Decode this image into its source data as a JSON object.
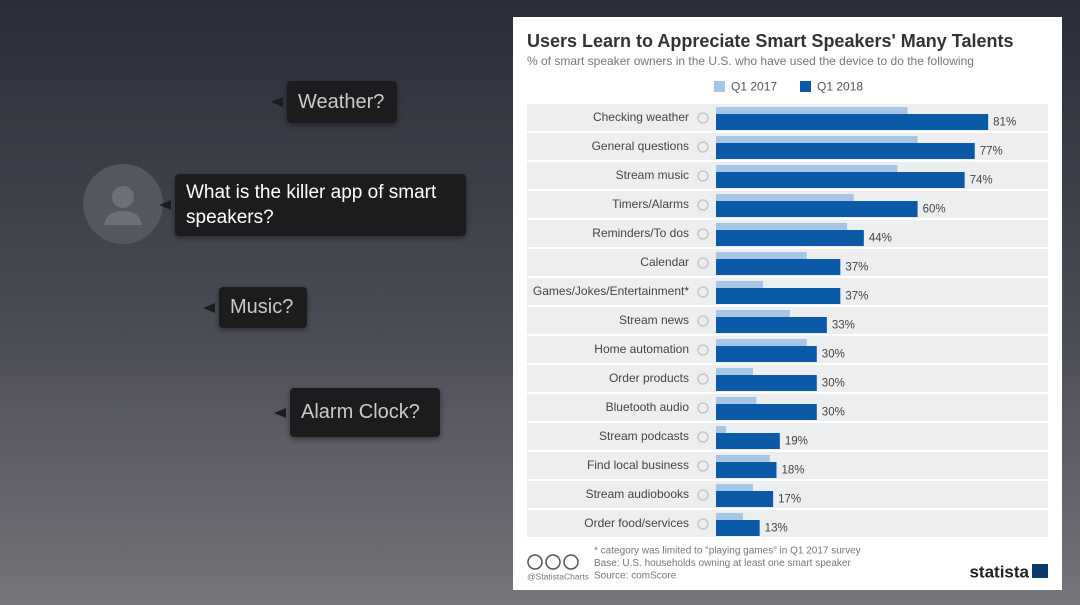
{
  "slide": {
    "bubbles": [
      "Weather?",
      "What is the killer app of smart speakers?",
      "Music?",
      "Alarm Clock?"
    ]
  },
  "chart_data": {
    "type": "bar",
    "orientation": "horizontal",
    "title": "Users Learn to Appreciate Smart Speakers' Many Talents",
    "subtitle": "% of smart speaker owners in the U.S. who have used the device to do the following",
    "categories": [
      "Checking weather",
      "General questions",
      "Stream music",
      "Timers/Alarms",
      "Reminders/To dos",
      "Calendar",
      "Games/Jokes/Entertainment*",
      "Stream news",
      "Home automation",
      "Order products",
      "Bluetooth audio",
      "Stream podcasts",
      "Find local business",
      "Stream audiobooks",
      "Order food/services"
    ],
    "series": [
      {
        "name": "Q1 2017",
        "color": "#a7c6e6",
        "values": [
          57,
          60,
          54,
          41,
          39,
          27,
          14,
          22,
          27,
          11,
          12,
          3,
          16,
          11,
          8
        ]
      },
      {
        "name": "Q1 2018",
        "color": "#0b5aa8",
        "values": [
          81,
          77,
          74,
          60,
          44,
          37,
          37,
          33,
          30,
          30,
          30,
          19,
          18,
          17,
          13
        ],
        "value_labels": [
          "81%",
          "77%",
          "74%",
          "60%",
          "44%",
          "37%",
          "37%",
          "33%",
          "30%",
          "30%",
          "30%",
          "19%",
          "18%",
          "17%",
          "13%"
        ]
      }
    ],
    "notes": [
      "* category was limited to \"playing games\" in Q1 2017 survey",
      "Base: U.S. households owning at least one smart speaker",
      "Source: comScore"
    ],
    "credit": "@StatistaCharts",
    "brand": "statista"
  }
}
